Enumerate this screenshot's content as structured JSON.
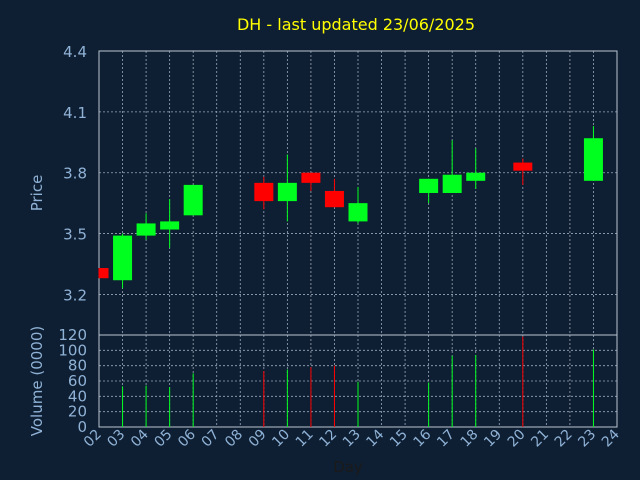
{
  "chart_data": [
    {
      "type": "candlestick",
      "title": "DH - last updated 23/06/2025",
      "ylabel": "Price",
      "ylim": [
        3.0,
        4.4
      ],
      "yticks": [
        "4.4",
        "4.1",
        "3.8",
        "3.5",
        "3.2"
      ],
      "ytick_values": [
        4.4,
        4.1,
        3.8,
        3.5,
        3.2
      ],
      "grid": true,
      "candles": [
        {
          "day": "02",
          "open": 3.33,
          "close": 3.28,
          "high": 3.33,
          "low": 3.28
        },
        {
          "day": "03",
          "open": 3.27,
          "close": 3.49,
          "high": 3.5,
          "low": 3.23
        },
        {
          "day": "04",
          "open": 3.49,
          "close": 3.55,
          "high": 3.6,
          "low": 3.47
        },
        {
          "day": "05",
          "open": 3.52,
          "close": 3.56,
          "high": 3.67,
          "low": 3.43
        },
        {
          "day": "06",
          "open": 3.59,
          "close": 3.74,
          "high": 3.74,
          "low": 3.59
        },
        {
          "day": "09",
          "open": 3.75,
          "close": 3.66,
          "high": 3.78,
          "low": 3.62
        },
        {
          "day": "10",
          "open": 3.66,
          "close": 3.75,
          "high": 3.89,
          "low": 3.56
        },
        {
          "day": "11",
          "open": 3.8,
          "close": 3.75,
          "high": 3.8,
          "low": 3.71
        },
        {
          "day": "12",
          "open": 3.71,
          "close": 3.63,
          "high": 3.77,
          "low": 3.63
        },
        {
          "day": "13",
          "open": 3.56,
          "close": 3.65,
          "high": 3.73,
          "low": 3.55
        },
        {
          "day": "16",
          "open": 3.7,
          "close": 3.77,
          "high": 3.77,
          "low": 3.65
        },
        {
          "day": "17",
          "open": 3.7,
          "close": 3.79,
          "high": 3.96,
          "low": 3.7
        },
        {
          "day": "18",
          "open": 3.76,
          "close": 3.8,
          "high": 3.92,
          "low": 3.72
        },
        {
          "day": "20",
          "open": 3.85,
          "close": 3.81,
          "high": 3.87,
          "low": 3.74
        },
        {
          "day": "23",
          "open": 3.76,
          "close": 3.97,
          "high": 4.03,
          "low": 3.76
        }
      ]
    },
    {
      "type": "bar",
      "ylabel": "Volume (0000)",
      "xlabel": "Day",
      "ylim": [
        0,
        120
      ],
      "yticks": [
        "120",
        "100",
        "80",
        "60",
        "40",
        "20",
        "0"
      ],
      "ytick_values": [
        120,
        100,
        80,
        60,
        40,
        20,
        0
      ],
      "categories": [
        "02",
        "03",
        "04",
        "05",
        "06",
        "07",
        "08",
        "09",
        "10",
        "11",
        "12",
        "13",
        "14",
        "15",
        "16",
        "17",
        "18",
        "19",
        "20",
        "21",
        "22",
        "23",
        "24"
      ],
      "values": [
        {
          "day": "03",
          "volume": 53,
          "direction": "up"
        },
        {
          "day": "04",
          "volume": 54,
          "direction": "up"
        },
        {
          "day": "05",
          "volume": 52,
          "direction": "up"
        },
        {
          "day": "06",
          "volume": 70,
          "direction": "up"
        },
        {
          "day": "09",
          "volume": 73,
          "direction": "down"
        },
        {
          "day": "10",
          "volume": 75,
          "direction": "up"
        },
        {
          "day": "11",
          "volume": 78,
          "direction": "down"
        },
        {
          "day": "12",
          "volume": 80,
          "direction": "down"
        },
        {
          "day": "13",
          "volume": 59,
          "direction": "up"
        },
        {
          "day": "16",
          "volume": 58,
          "direction": "up"
        },
        {
          "day": "17",
          "volume": 93,
          "direction": "up"
        },
        {
          "day": "18",
          "volume": 94,
          "direction": "up"
        },
        {
          "day": "20",
          "volume": 118,
          "direction": "down"
        },
        {
          "day": "23",
          "volume": 101,
          "direction": "up"
        }
      ]
    }
  ],
  "colors": {
    "background": "#0f1f33",
    "title": "#ffff00",
    "axis_text": "#8fb2d6",
    "grid": "#9aa8b8",
    "frame": "#b8c4d0",
    "up": "#00ff1e",
    "down": "#ff0000"
  }
}
